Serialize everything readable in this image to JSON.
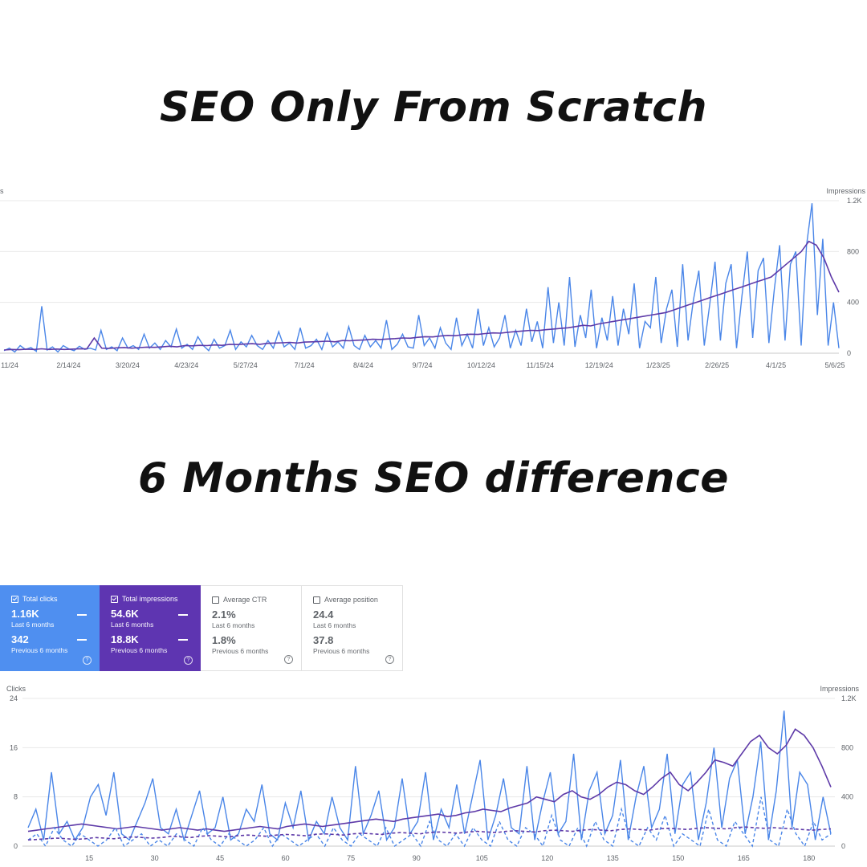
{
  "titles": {
    "top": "SEO Only From Scratch",
    "middle": "6 Months SEO difference"
  },
  "colors": {
    "clicks_blue": "#4f8ff0",
    "impressions_purple": "#5e35b1",
    "clicks_line": "#4a86e8",
    "impressions_line": "#5e3aa8",
    "gridline": "#e6e6e6"
  },
  "metric_cards": [
    {
      "label": "Total clicks",
      "checked": true,
      "current": "1.16K",
      "current_period": "Last 6 months",
      "previous": "342",
      "previous_period": "Previous 6 months"
    },
    {
      "label": "Total impressions",
      "checked": true,
      "current": "54.6K",
      "current_period": "Last 6 months",
      "previous": "18.8K",
      "previous_period": "Previous 6 months"
    },
    {
      "label": "Average CTR",
      "checked": false,
      "current": "2.1%",
      "current_period": "Last 6 months",
      "previous": "1.8%",
      "previous_period": "Previous 6 months"
    },
    {
      "label": "Average position",
      "checked": false,
      "current": "24.4",
      "current_period": "Last 6 months",
      "previous": "37.8",
      "previous_period": "Previous 6 months"
    }
  ],
  "help_icon": "question-circle-icon",
  "chart_data": [
    {
      "type": "line",
      "left_axis_label": "s",
      "right_axis_label": "Impressions",
      "right_ticks": [
        "1.2K",
        "800",
        "400",
        "0"
      ],
      "right_ylim": [
        0,
        1200
      ],
      "x_tick_labels": [
        "11/24",
        "2/14/24",
        "3/20/24",
        "4/23/24",
        "5/27/24",
        "7/1/24",
        "8/4/24",
        "9/7/24",
        "10/12/24",
        "11/15/24",
        "12/19/24",
        "1/23/25",
        "2/26/25",
        "4/1/25",
        "5/6/25"
      ],
      "grid": true,
      "series": [
        {
          "color": "#4a86e8",
          "values": [
            20,
            40,
            10,
            60,
            30,
            45,
            15,
            370,
            25,
            50,
            10,
            60,
            35,
            20,
            55,
            30,
            40,
            25,
            180,
            30,
            50,
            20,
            120,
            40,
            60,
            30,
            150,
            40,
            80,
            30,
            100,
            50,
            190,
            40,
            70,
            30,
            130,
            60,
            20,
            110,
            40,
            60,
            180,
            30,
            90,
            50,
            140,
            60,
            30,
            100,
            40,
            170,
            50,
            80,
            30,
            200,
            40,
            60,
            110,
            30,
            160,
            50,
            90,
            40,
            210,
            60,
            30,
            140,
            50,
            100,
            40,
            260,
            30,
            70,
            150,
            50,
            40,
            300,
            60,
            120,
            40,
            200,
            80,
            30,
            280,
            60,
            150,
            40,
            350,
            60,
            200,
            50,
            120,
            300,
            40,
            180,
            60,
            350,
            90,
            250,
            40,
            520,
            80,
            400,
            60,
            600,
            50,
            300,
            120,
            500,
            40,
            280,
            100,
            450,
            60,
            350,
            150,
            550,
            40,
            250,
            200,
            600,
            80,
            350,
            500,
            50,
            700,
            100,
            420,
            650,
            60,
            380,
            720,
            100,
            550,
            700,
            40,
            450,
            800,
            120,
            650,
            750,
            80,
            500,
            850,
            100,
            700,
            800,
            60,
            850,
            1180,
            300,
            900,
            60,
            400,
            40
          ]
        },
        {
          "color": "#5e3aa8",
          "values": [
            25,
            30,
            28,
            32,
            30,
            35,
            30,
            33,
            30,
            32,
            35,
            34,
            120,
            40,
            38,
            42,
            45,
            40,
            44,
            48,
            46,
            50,
            55,
            50,
            60,
            58,
            62,
            60,
            65,
            62,
            70,
            68,
            72,
            75,
            70,
            78,
            80,
            82,
            85,
            80,
            88,
            90,
            92,
            95,
            90,
            100,
            98,
            102,
            105,
            110,
            108,
            112,
            115,
            120,
            118,
            125,
            130,
            128,
            135,
            140,
            138,
            145,
            150,
            148,
            155,
            160,
            158,
            165,
            170,
            175,
            180,
            178,
            185,
            190,
            195,
            200,
            210,
            220,
            215,
            230,
            240,
            250,
            260,
            270,
            280,
            290,
            300,
            310,
            320,
            340,
            360,
            380,
            400,
            420,
            440,
            460,
            480,
            500,
            520,
            540,
            560,
            580,
            600,
            650,
            700,
            750,
            800,
            880,
            850,
            750,
            600,
            480
          ]
        }
      ]
    },
    {
      "type": "line",
      "left_axis_label": "Clicks",
      "right_axis_label": "Impressions",
      "left_ticks": [
        "24",
        "16",
        "8",
        "0"
      ],
      "right_ticks": [
        "1.2K",
        "800",
        "400",
        "0"
      ],
      "ylim": [
        0,
        24
      ],
      "right_ylim": [
        0,
        1200
      ],
      "x_tick_labels": [
        "15",
        "30",
        "45",
        "60",
        "75",
        "90",
        "105",
        "120",
        "135",
        "150",
        "165",
        "180"
      ],
      "xlim": [
        1,
        185
      ],
      "grid": true,
      "series": [
        {
          "name": "Total clicks",
          "period": "Last 6 months",
          "style": "solid",
          "color": "#4a86e8",
          "values": [
            3,
            6,
            1,
            12,
            2,
            4,
            1,
            3,
            8,
            10,
            5,
            12,
            2,
            1,
            4,
            7,
            11,
            3,
            2,
            6,
            1,
            5,
            9,
            2,
            3,
            8,
            1,
            2,
            6,
            4,
            10,
            2,
            1,
            7,
            3,
            9,
            1,
            4,
            2,
            8,
            3,
            1,
            13,
            2,
            5,
            9,
            1,
            3,
            11,
            2,
            4,
            12,
            1,
            6,
            3,
            10,
            2,
            8,
            14,
            1,
            5,
            11,
            3,
            2,
            13,
            1,
            7,
            12,
            2,
            4,
            15,
            1,
            9,
            12,
            2,
            5,
            14,
            1,
            8,
            13,
            3,
            6,
            15,
            2,
            10,
            12,
            1,
            7,
            16,
            3,
            11,
            14,
            2,
            8,
            17,
            1,
            9,
            22,
            3,
            12,
            10,
            1,
            8,
            2
          ]
        },
        {
          "name": "Total impressions",
          "period": "Last 6 months",
          "style": "solid",
          "color": "#5e3aa8",
          "values": [
            120,
            130,
            140,
            150,
            160,
            170,
            180,
            170,
            160,
            150,
            140,
            150,
            160,
            150,
            140,
            130,
            140,
            150,
            140,
            130,
            140,
            130,
            120,
            130,
            140,
            150,
            160,
            150,
            140,
            160,
            170,
            180,
            170,
            160,
            170,
            180,
            190,
            200,
            210,
            220,
            210,
            200,
            220,
            230,
            240,
            250,
            260,
            240,
            250,
            270,
            280,
            300,
            290,
            280,
            310,
            330,
            350,
            400,
            380,
            360,
            420,
            450,
            400,
            380,
            420,
            480,
            520,
            500,
            450,
            420,
            480,
            550,
            600,
            500,
            450,
            520,
            600,
            700,
            680,
            650,
            750,
            850,
            900,
            800,
            750,
            820,
            950,
            900,
            800,
            650,
            480
          ]
        },
        {
          "name": "Total clicks",
          "period": "Previous 6 months",
          "style": "dashed",
          "color": "#4a86e8",
          "values": [
            1,
            2,
            0,
            3,
            1,
            0,
            2,
            1,
            0,
            1,
            3,
            0,
            1,
            2,
            0,
            1,
            0,
            2,
            1,
            0,
            3,
            1,
            0,
            2,
            1,
            0,
            1,
            3,
            0,
            2,
            1,
            0,
            1,
            2,
            0,
            3,
            1,
            0,
            2,
            1,
            0,
            3,
            0,
            1,
            2,
            0,
            4,
            1,
            0,
            2,
            0,
            3,
            1,
            0,
            4,
            1,
            0,
            3,
            2,
            0,
            5,
            1,
            0,
            3,
            0,
            4,
            1,
            0,
            6,
            1,
            0,
            3,
            1,
            5,
            0,
            2,
            1,
            0,
            6,
            1,
            0,
            4,
            2,
            0,
            8,
            1,
            0,
            6,
            2,
            0,
            4,
            1,
            2
          ]
        },
        {
          "name": "Total impressions",
          "period": "Previous 6 months",
          "style": "dashed",
          "color": "#5e3aa8",
          "values": [
            50,
            55,
            60,
            65,
            60,
            55,
            60,
            70,
            65,
            60,
            70,
            75,
            70,
            65,
            70,
            80,
            75,
            70,
            80,
            85,
            80,
            75,
            85,
            90,
            85,
            80,
            90,
            95,
            90,
            85,
            95,
            100,
            95,
            90,
            100,
            105,
            100,
            95,
            105,
            110,
            105,
            100,
            110,
            115,
            110,
            105,
            115,
            120,
            115,
            110,
            120,
            125,
            120,
            115,
            125,
            130,
            125,
            120,
            130,
            135,
            130,
            125,
            135,
            140,
            135,
            130,
            140,
            145,
            140,
            135,
            145,
            150,
            145,
            140,
            150,
            155,
            150,
            145,
            150,
            145,
            140,
            135,
            130,
            135,
            140
          ]
        }
      ]
    }
  ]
}
